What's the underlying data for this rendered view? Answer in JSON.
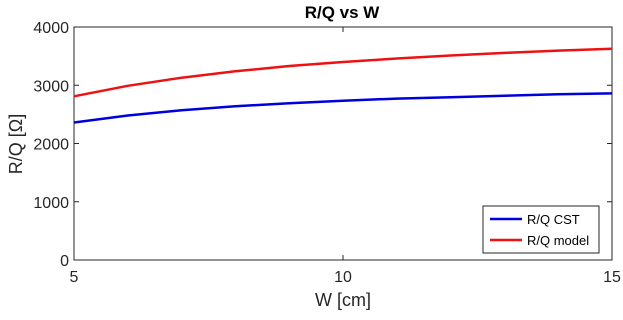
{
  "chart_data": {
    "type": "line",
    "title": "R/Q vs W",
    "xlabel": "W [cm]",
    "ylabel": "R/Q [Ω]",
    "xlim": [
      5,
      15
    ],
    "ylim": [
      0,
      4000
    ],
    "xticks": [
      5,
      10,
      15
    ],
    "yticks": [
      0,
      1000,
      2000,
      3000,
      4000
    ],
    "xtick_labels": [
      "5",
      "10",
      "15"
    ],
    "ytick_labels": [
      "0",
      "1000",
      "2000",
      "3000",
      "4000"
    ],
    "grid": false,
    "legend_position": "bottom-right",
    "x": [
      5,
      6,
      7,
      8,
      9,
      10,
      11,
      12,
      13,
      14,
      15
    ],
    "series": [
      {
        "name": "R/Q CST",
        "color": "#0000dd",
        "values": [
          2360,
          2480,
          2570,
          2640,
          2690,
          2735,
          2770,
          2795,
          2820,
          2845,
          2860
        ]
      },
      {
        "name": "R/Q model",
        "color": "#ee1111",
        "values": [
          2810,
          2990,
          3130,
          3240,
          3330,
          3400,
          3460,
          3510,
          3555,
          3595,
          3625
        ]
      }
    ]
  }
}
